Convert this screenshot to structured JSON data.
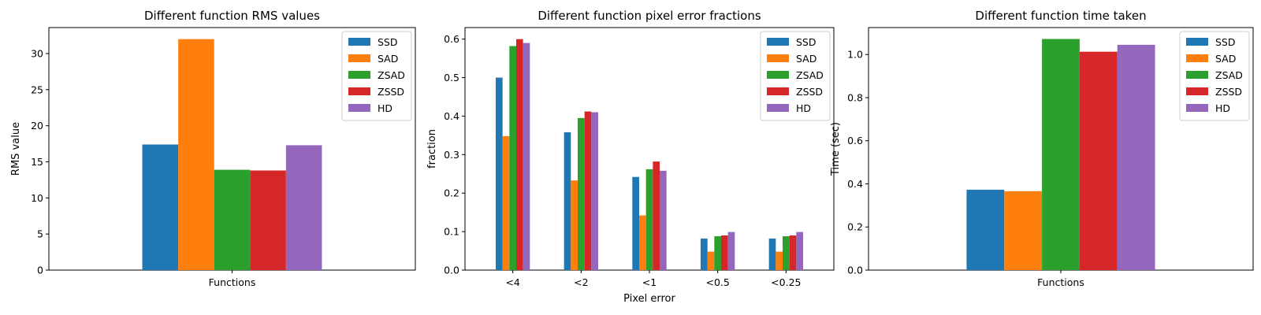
{
  "colors": {
    "SSD": "#1f77b4",
    "SAD": "#ff7f0e",
    "ZSAD": "#2ca02c",
    "ZSSD": "#d62728",
    "HD": "#9467bd"
  },
  "chart_data": [
    {
      "type": "bar",
      "title": "Different function RMS values",
      "xlabel": "",
      "ylabel": "RMS value",
      "categories": [
        "Functions"
      ],
      "series": [
        {
          "name": "SSD",
          "values": [
            17.4
          ]
        },
        {
          "name": "SAD",
          "values": [
            32.0
          ]
        },
        {
          "name": "ZSAD",
          "values": [
            13.9
          ]
        },
        {
          "name": "ZSSD",
          "values": [
            13.8
          ]
        },
        {
          "name": "HD",
          "values": [
            17.3
          ]
        }
      ],
      "ylim": [
        0,
        33.6
      ],
      "yticks": [
        0,
        5,
        10,
        15,
        20,
        25,
        30
      ],
      "grid": false,
      "legend": "top-right"
    },
    {
      "type": "bar",
      "title": "Different function pixel error fractions",
      "xlabel": "Pixel error",
      "ylabel": "fraction",
      "categories": [
        "<4",
        "<2",
        "<1",
        "<0.5",
        "<0.25"
      ],
      "series": [
        {
          "name": "SSD",
          "values": [
            0.5,
            0.358,
            0.242,
            0.082,
            0.082
          ]
        },
        {
          "name": "SAD",
          "values": [
            0.348,
            0.233,
            0.142,
            0.048,
            0.048
          ]
        },
        {
          "name": "ZSAD",
          "values": [
            0.582,
            0.395,
            0.262,
            0.088,
            0.088
          ]
        },
        {
          "name": "ZSSD",
          "values": [
            0.6,
            0.412,
            0.282,
            0.09,
            0.09
          ]
        },
        {
          "name": "HD",
          "values": [
            0.59,
            0.41,
            0.258,
            0.099,
            0.099
          ]
        }
      ],
      "ylim": [
        0,
        0.63
      ],
      "yticks": [
        0.0,
        0.1,
        0.2,
        0.3,
        0.4,
        0.5,
        0.6
      ],
      "grid": false,
      "legend": "top-right"
    },
    {
      "type": "bar",
      "title": "Different function time taken",
      "xlabel": "",
      "ylabel": "Time (sec)",
      "categories": [
        "Functions"
      ],
      "series": [
        {
          "name": "SSD",
          "values": [
            0.373
          ]
        },
        {
          "name": "SAD",
          "values": [
            0.366
          ]
        },
        {
          "name": "ZSAD",
          "values": [
            1.072
          ]
        },
        {
          "name": "ZSSD",
          "values": [
            1.013
          ]
        },
        {
          "name": "HD",
          "values": [
            1.045
          ]
        }
      ],
      "ylim": [
        0,
        1.125
      ],
      "yticks": [
        0.0,
        0.2,
        0.4,
        0.6,
        0.8,
        1.0
      ],
      "grid": false,
      "legend": "top-right"
    }
  ]
}
